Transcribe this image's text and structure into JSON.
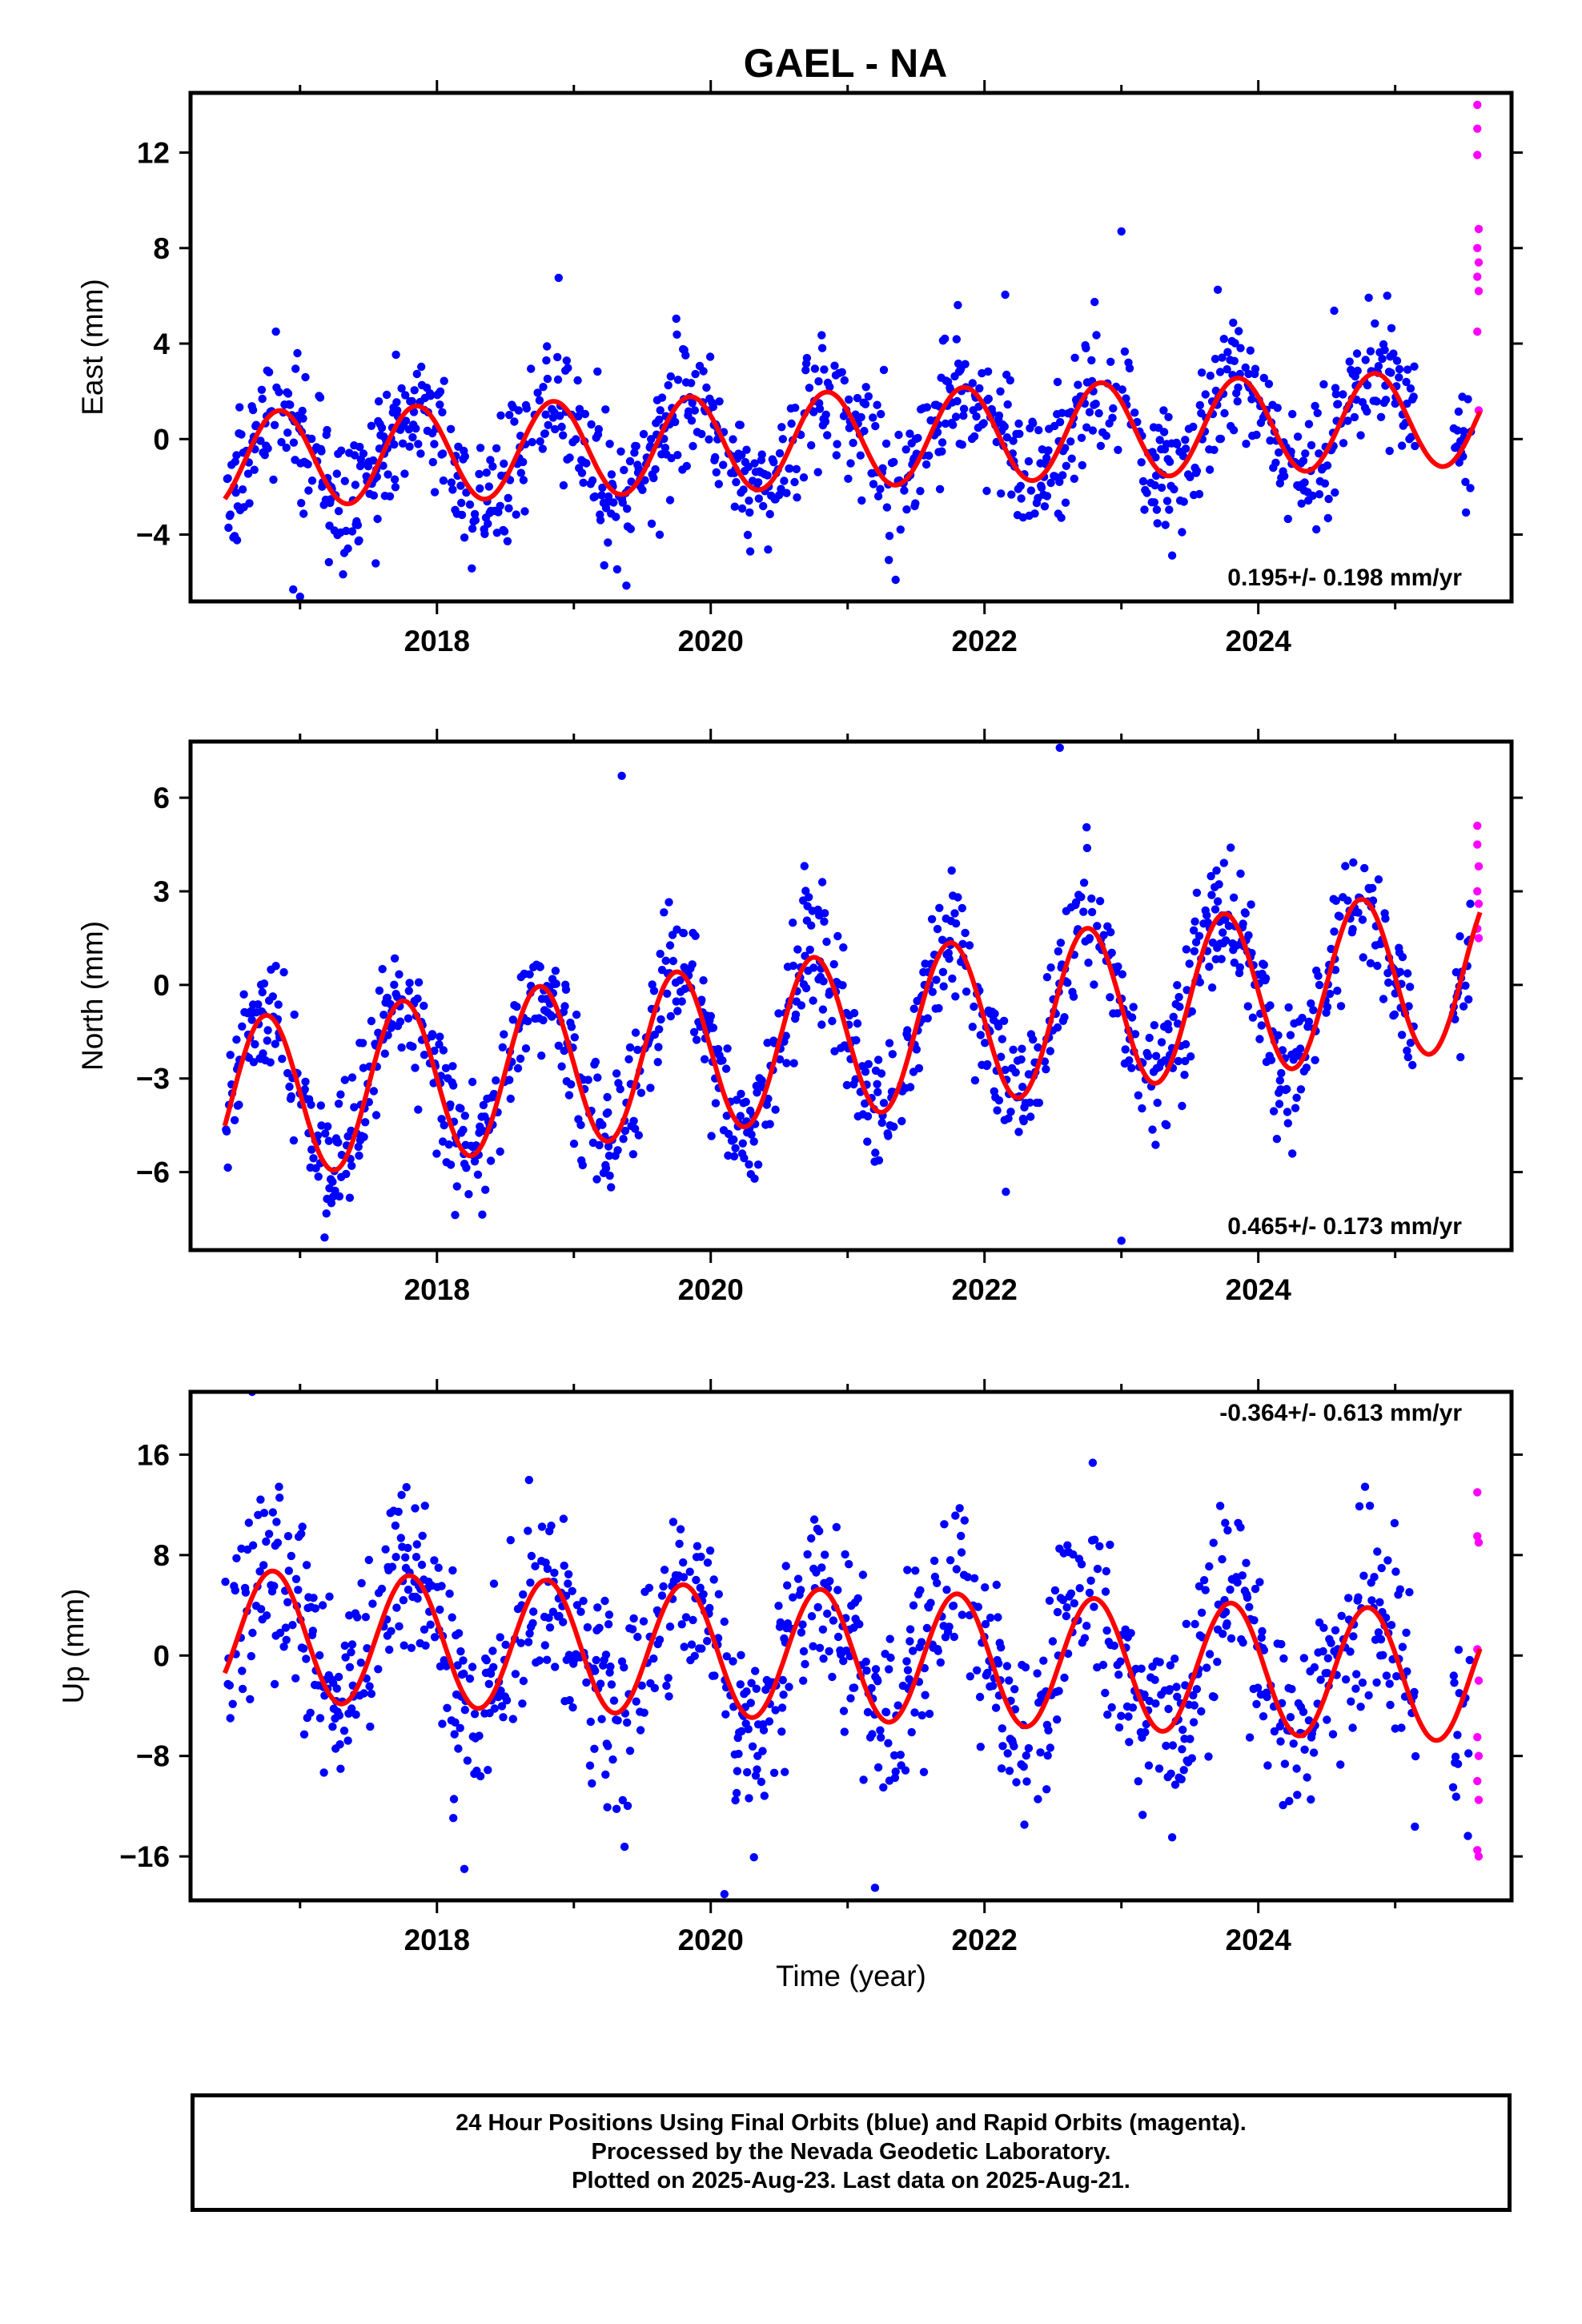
{
  "title": "GAEL - NA",
  "xlabel": "Time (year)",
  "colors": {
    "final": "#0000ff",
    "rapid": "#ff00ff",
    "fit": "#ff0000",
    "frame": "#000000"
  },
  "caption": [
    "24 Hour Positions Using Final Orbits (blue) and Rapid Orbits (magenta).",
    "Processed by the Nevada Geodetic Laboratory.",
    "Plotted on 2025-Aug-23. Last data on 2025-Aug-21."
  ],
  "chart_data": [
    {
      "type": "scatter",
      "ylabel": "East (mm)",
      "rate_label": "0.195+/- 0.198 mm/yr",
      "xlim": [
        2016.2,
        2025.85
      ],
      "ylim": [
        -6.8,
        14.5
      ],
      "y_ticks": [
        -4,
        0,
        4,
        8,
        12
      ],
      "x_ticks": [
        2018,
        2020,
        2022,
        2024
      ],
      "x_minor": [
        2017,
        2019,
        2021,
        2023,
        2025
      ],
      "fit": {
        "amp": 2.0,
        "phase": 0.6,
        "trend": 0.195,
        "offset": 0.0,
        "noise": 1.4,
        "seed": 11
      },
      "rapid_points": [
        [
          2025.6,
          14.0
        ],
        [
          2025.6,
          13.0
        ],
        [
          2025.6,
          11.9
        ],
        [
          2025.61,
          8.8
        ],
        [
          2025.6,
          8.0
        ],
        [
          2025.61,
          7.4
        ],
        [
          2025.6,
          6.8
        ],
        [
          2025.61,
          6.2
        ],
        [
          2025.6,
          4.5
        ],
        [
          2025.61,
          1.2
        ]
      ],
      "outliers": [
        [
          2023.0,
          8.7
        ],
        [
          2016.95,
          -6.3
        ],
        [
          2017.0,
          -6.6
        ]
      ]
    },
    {
      "type": "scatter",
      "ylabel": "North (mm)",
      "rate_label": "0.465+/- 0.173 mm/yr",
      "xlim": [
        2016.2,
        2025.85
      ],
      "ylim": [
        -8.5,
        7.8
      ],
      "y_ticks": [
        -6,
        -3,
        0,
        3,
        6
      ],
      "x_ticks": [
        2018,
        2020,
        2022,
        2024
      ],
      "x_minor": [
        2017,
        2019,
        2021,
        2023,
        2025
      ],
      "fit": {
        "amp": 2.6,
        "phase": 0.5,
        "trend": 0.465,
        "offset": -1.6,
        "noise": 1.0,
        "seed": 23
      },
      "rapid_points": [
        [
          2025.6,
          5.1
        ],
        [
          2025.6,
          4.5
        ],
        [
          2025.61,
          3.8
        ],
        [
          2025.6,
          3.0
        ],
        [
          2025.61,
          2.6
        ],
        [
          2025.6,
          1.8
        ],
        [
          2025.61,
          1.5
        ]
      ],
      "outliers": [
        [
          2023.0,
          -8.2
        ],
        [
          2019.35,
          6.7
        ],
        [
          2022.55,
          7.6
        ]
      ]
    },
    {
      "type": "scatter",
      "ylabel": "Up (mm)",
      "rate_label": "-0.364+/- 0.613 mm/yr",
      "xlim": [
        2016.2,
        2025.85
      ],
      "ylim": [
        -19.5,
        21.0
      ],
      "y_ticks": [
        -16,
        -8,
        0,
        8,
        16
      ],
      "x_ticks": [
        2018,
        2020,
        2022,
        2024
      ],
      "x_minor": [
        2017,
        2019,
        2021,
        2023,
        2025
      ],
      "fit": {
        "amp": 5.2,
        "phase": 0.55,
        "trend": -0.364,
        "offset": 0.0,
        "noise": 3.8,
        "seed": 37
      },
      "rapid_points": [
        [
          2025.6,
          13.0
        ],
        [
          2025.6,
          9.5
        ],
        [
          2025.61,
          9.0
        ],
        [
          2025.6,
          0.5
        ],
        [
          2025.61,
          -2.0
        ],
        [
          2025.6,
          -6.5
        ],
        [
          2025.61,
          -8.0
        ],
        [
          2025.6,
          -10.0
        ],
        [
          2025.61,
          -11.5
        ],
        [
          2025.6,
          -15.5
        ],
        [
          2025.61,
          -16.0
        ]
      ],
      "outliers": [
        [
          2016.65,
          21.0
        ],
        [
          2020.1,
          -19.0
        ],
        [
          2021.2,
          -18.5
        ],
        [
          2018.2,
          -17.0
        ]
      ]
    }
  ]
}
